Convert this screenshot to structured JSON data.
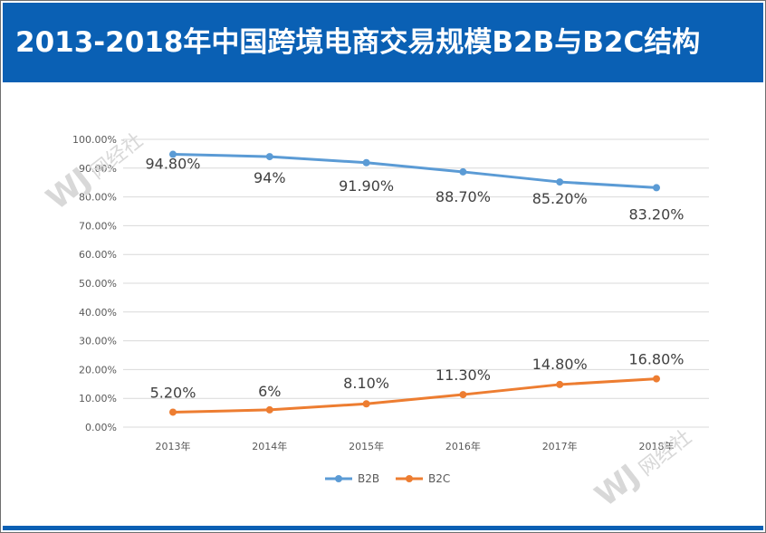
{
  "header": {
    "title": "2013-2018年中国跨境电商交易规模B2B与B2C结构"
  },
  "colors": {
    "banner": "#0a60b4",
    "b2b": "#5b9bd5",
    "b2c": "#ed7d31",
    "grid": "#d9d9d9"
  },
  "watermark": {
    "text": "网经社"
  },
  "chart_data": {
    "type": "line",
    "title": "",
    "xlabel": "",
    "ylabel": "",
    "categories": [
      "2013年",
      "2014年",
      "2015年",
      "2016年",
      "2017年",
      "2018年"
    ],
    "ylim": [
      0,
      100
    ],
    "yticks": [
      "0.00%",
      "10.00%",
      "20.00%",
      "30.00%",
      "40.00%",
      "50.00%",
      "60.00%",
      "70.00%",
      "80.00%",
      "90.00%",
      "100.00%"
    ],
    "grid": true,
    "legend_position": "bottom",
    "series": [
      {
        "name": "B2B",
        "values": [
          94.8,
          94,
          91.9,
          88.7,
          85.2,
          83.2
        ],
        "labels": [
          "94.80%",
          "94%",
          "91.90%",
          "88.70%",
          "85.20%",
          "83.20%"
        ]
      },
      {
        "name": "B2C",
        "values": [
          5.2,
          6,
          8.1,
          11.3,
          14.8,
          16.8
        ],
        "labels": [
          "5.20%",
          "6%",
          "8.10%",
          "11.30%",
          "14.80%",
          "16.80%"
        ]
      }
    ]
  }
}
